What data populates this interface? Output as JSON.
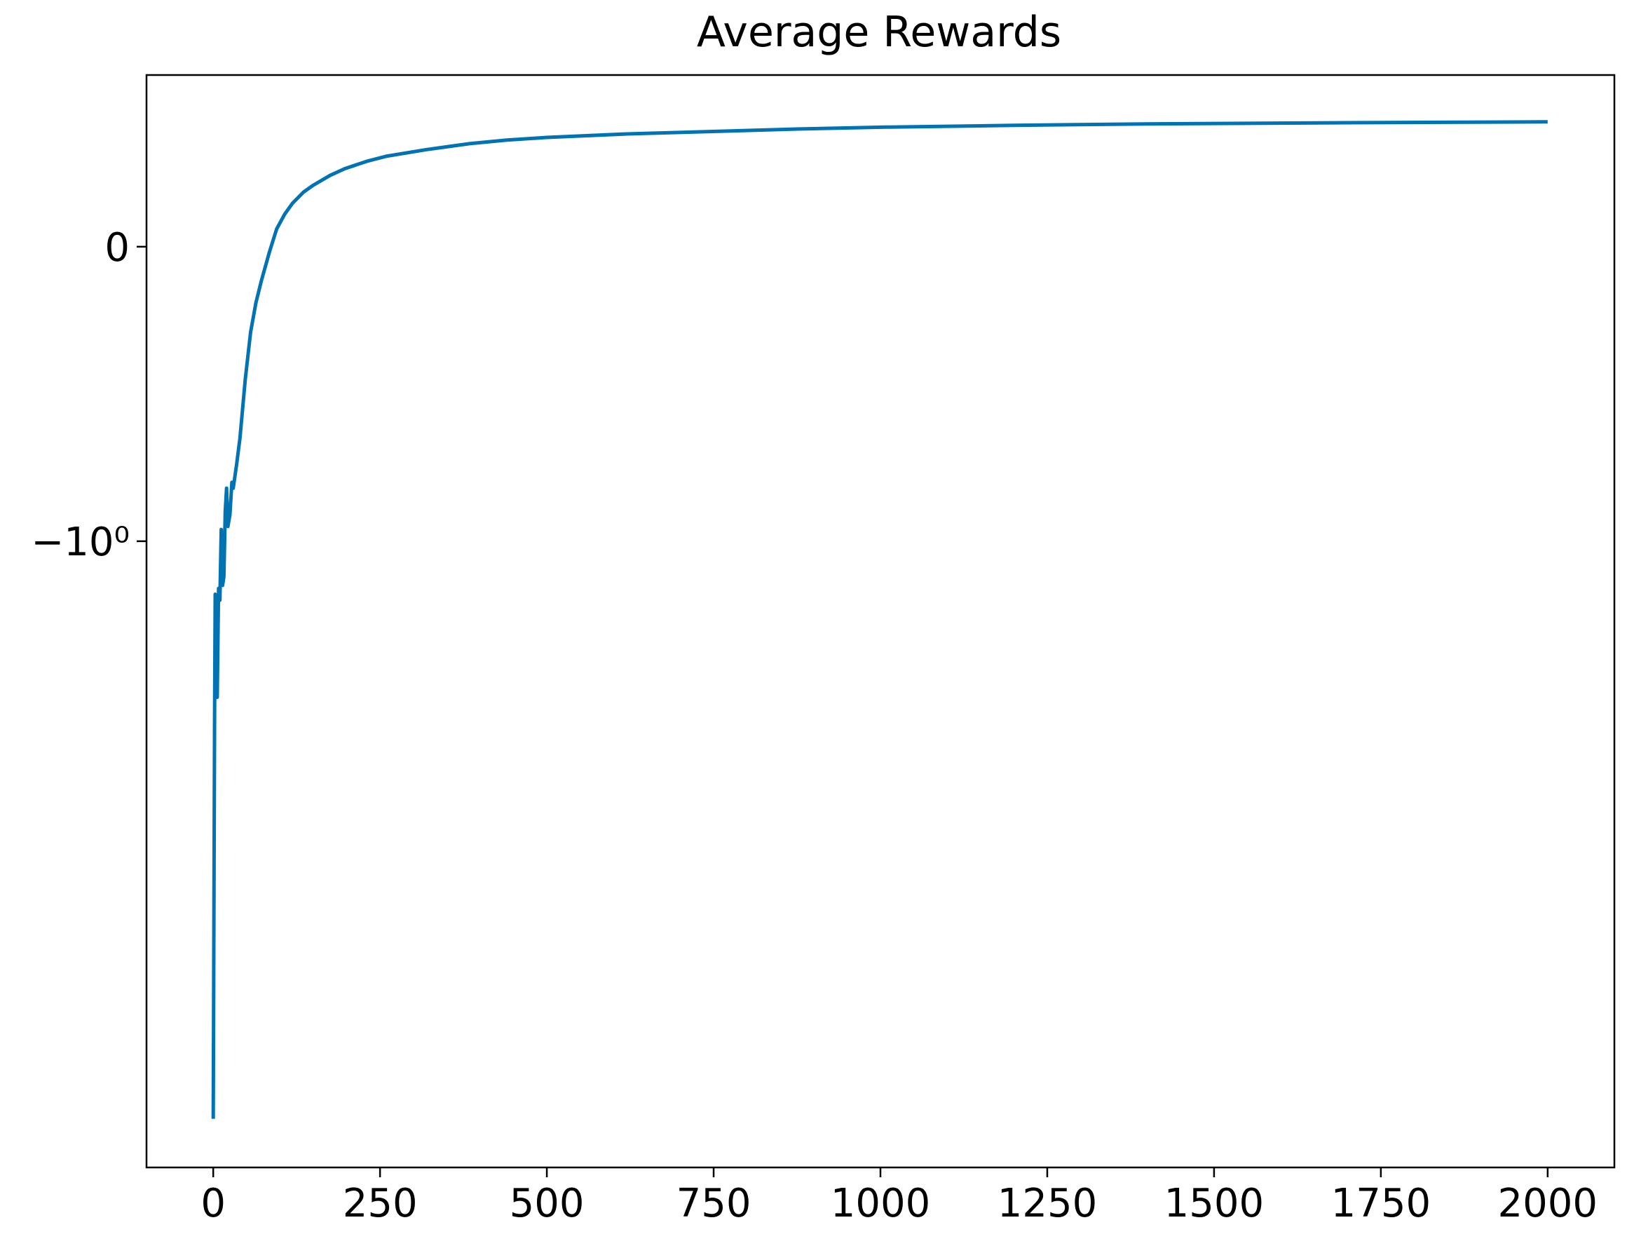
{
  "chart_data": {
    "type": "line",
    "title": "Average Rewards",
    "yscale": "symlog",
    "linthresh": 2,
    "xlim": [
      -100,
      2100
    ],
    "xticks": [
      0,
      250,
      500,
      750,
      1000,
      1250,
      1500,
      1750,
      2000
    ],
    "ylim": [
      -8.45,
      0.583
    ],
    "yticks": [
      0,
      {
        "value": -1,
        "label": "−10⁰"
      }
    ],
    "series": [
      {
        "color": "#0173b2",
        "x": [
          0,
          2,
          3,
          5,
          6,
          8,
          10,
          12,
          14,
          16,
          18,
          20,
          22,
          25,
          28,
          30,
          35,
          40,
          48,
          56,
          64,
          72,
          84,
          95,
          107,
          119,
          135,
          150,
          175,
          197,
          230,
          259,
          320,
          384,
          440,
          500,
          620,
          758,
          880,
          1008,
          1200,
          1398,
          1700,
          2000
        ],
        "values": [
          -6.84,
          -1.6,
          -1.18,
          -1.3,
          -1.53,
          -1.16,
          -1.2,
          -0.96,
          -1.15,
          -1.12,
          -0.9,
          -0.82,
          -0.95,
          -0.91,
          -0.8,
          -0.82,
          -0.74,
          -0.65,
          -0.45,
          -0.29,
          -0.19,
          -0.117,
          -0.02,
          0.06,
          0.11,
          0.148,
          0.185,
          0.209,
          0.242,
          0.265,
          0.29,
          0.307,
          0.33,
          0.35,
          0.362,
          0.371,
          0.383,
          0.392,
          0.4,
          0.406,
          0.412,
          0.417,
          0.421,
          0.424
        ]
      }
    ]
  }
}
